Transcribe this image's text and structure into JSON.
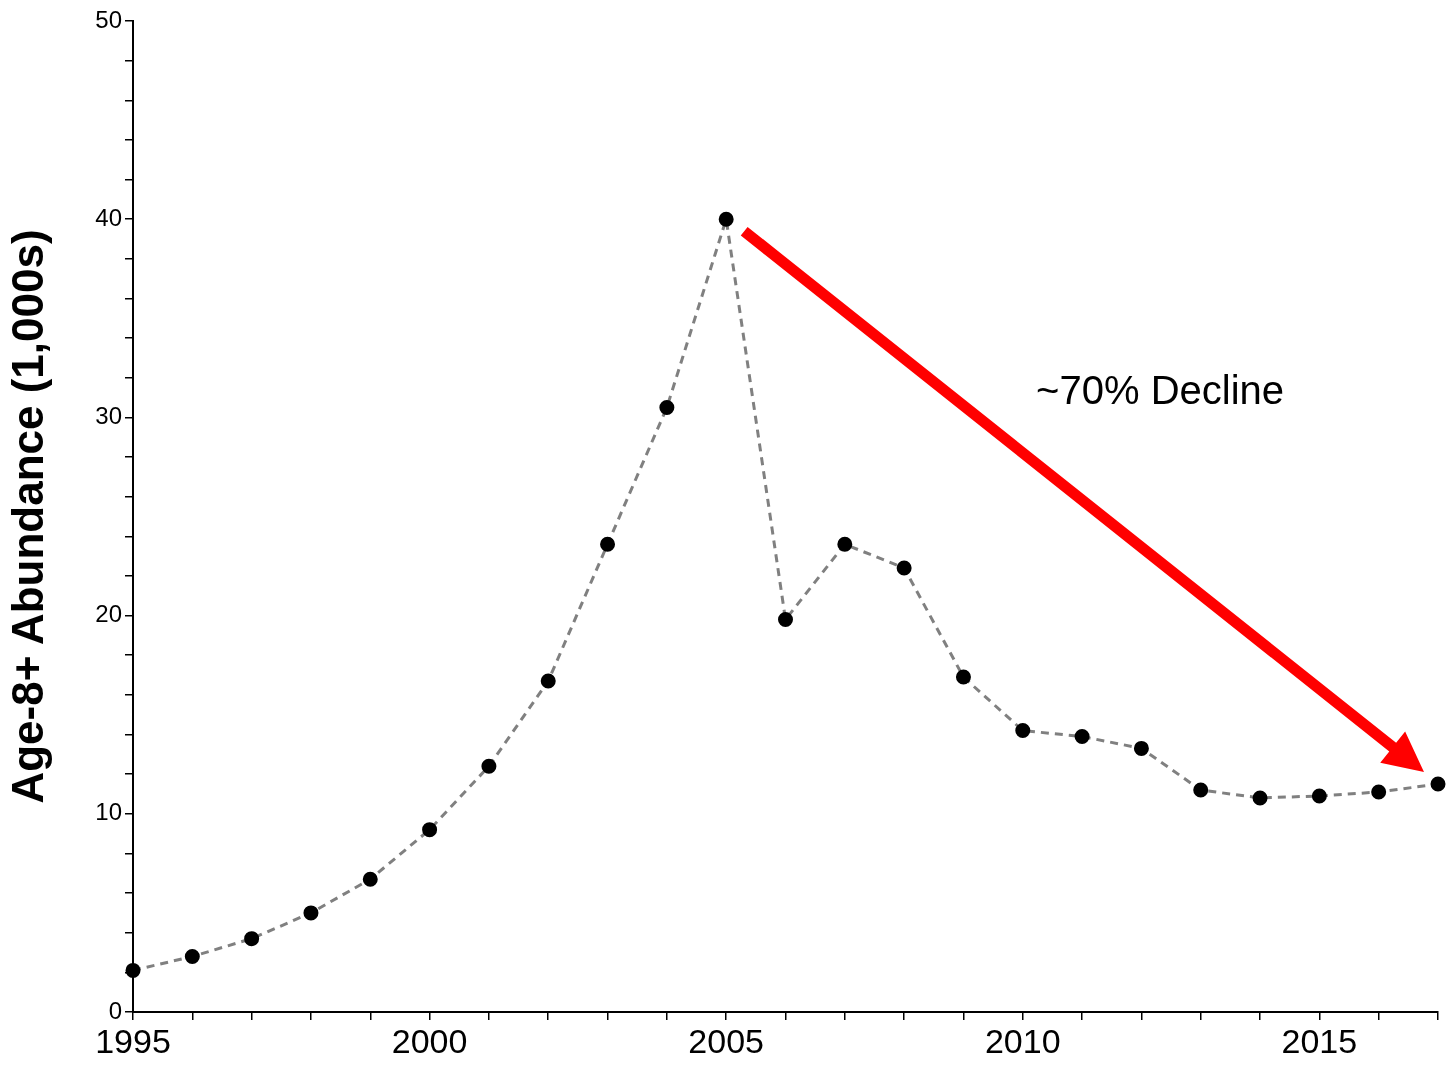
{
  "chart_data": {
    "type": "line",
    "ylabel": "Age-8+ Abundance (1,000s)",
    "x": [
      1995,
      1996,
      1997,
      1998,
      1999,
      2000,
      2001,
      2002,
      2003,
      2004,
      2005,
      2006,
      2007,
      2008,
      2009,
      2010,
      2011,
      2012,
      2013,
      2014,
      2015,
      2016,
      2017
    ],
    "series": [
      {
        "color": "#808080",
        "values": [
          2.1,
          2.8,
          3.7,
          5.0,
          6.7,
          9.2,
          12.4,
          16.7,
          23.6,
          30.5,
          40.0,
          19.8,
          23.6,
          22.4,
          16.9,
          14.2,
          13.9,
          13.3,
          11.2,
          10.8,
          10.9,
          11.1,
          11.5
        ]
      }
    ],
    "xlim": [
      1995,
      2017
    ],
    "xticks": [
      1995,
      {
        "value": 1996,
        "label": null
      },
      {
        "value": 1997,
        "label": null
      },
      {
        "value": 1998,
        "label": null
      },
      {
        "value": 1999,
        "label": null
      },
      2000,
      {
        "value": 2001,
        "label": null
      },
      {
        "value": 2002,
        "label": null
      },
      {
        "value": 2003,
        "label": null
      },
      {
        "value": 2004,
        "label": null
      },
      2005,
      {
        "value": 2006,
        "label": null
      },
      {
        "value": 2007,
        "label": null
      },
      {
        "value": 2008,
        "label": null
      },
      {
        "value": 2009,
        "label": null
      },
      2010,
      {
        "value": 2011,
        "label": null
      },
      {
        "value": 2012,
        "label": null
      },
      {
        "value": 2013,
        "label": null
      },
      {
        "value": 2014,
        "label": null
      },
      2015,
      {
        "value": 2016,
        "label": null
      },
      {
        "value": 2017,
        "label": null
      }
    ],
    "ylim": [
      0,
      50
    ],
    "yticks": [
      0,
      {
        "value": 2,
        "label": null
      },
      {
        "value": 4,
        "label": null
      },
      {
        "value": 6,
        "label": null
      },
      {
        "value": 8,
        "label": null
      },
      10,
      {
        "value": 12,
        "label": null
      },
      {
        "value": 14,
        "label": null
      },
      {
        "value": 16,
        "label": null
      },
      {
        "value": 18,
        "label": null
      },
      20,
      {
        "value": 22,
        "label": null
      },
      {
        "value": 24,
        "label": null
      },
      {
        "value": 26,
        "label": null
      },
      {
        "value": 28,
        "label": null
      },
      30,
      {
        "value": 32,
        "label": null
      },
      {
        "value": 34,
        "label": null
      },
      {
        "value": 36,
        "label": null
      },
      {
        "value": 38,
        "label": null
      },
      40,
      {
        "value": 42,
        "label": null
      },
      {
        "value": 44,
        "label": null
      },
      {
        "value": 46,
        "label": null
      },
      {
        "value": 48,
        "label": null
      },
      50
    ],
    "annotations": [
      "~70% Decline"
    ],
    "grid": false,
    "legend": false,
    "marker": "circle",
    "line_style": "dashed"
  }
}
